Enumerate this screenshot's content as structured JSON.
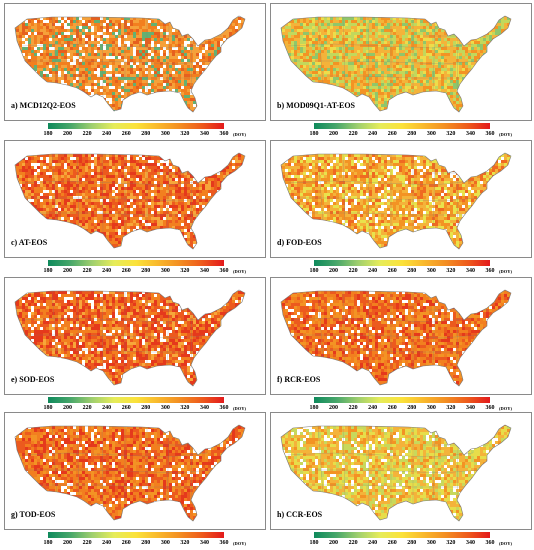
{
  "panels": [
    {
      "label": "a) MCD12Q2-EOS",
      "palette": [
        "#f5a13a",
        "#f27f1f",
        "#e6601e",
        "#64b072",
        "#ffffff"
      ],
      "weights": [
        0.3,
        0.28,
        0.16,
        0.12,
        0.14
      ]
    },
    {
      "label": "b) MOD09Q1-AT-EOS",
      "palette": [
        "#f4b33a",
        "#f39324",
        "#c2d85c",
        "#8fc66b",
        "#eedc4a"
      ],
      "weights": [
        0.33,
        0.22,
        0.2,
        0.12,
        0.13
      ]
    },
    {
      "label": "c) AT-EOS",
      "palette": [
        "#f27f1f",
        "#ec5a1e",
        "#e5391c",
        "#f7a63a",
        "#ffffff"
      ],
      "weights": [
        0.3,
        0.25,
        0.2,
        0.15,
        0.1
      ]
    },
    {
      "label": "d) FOD-EOS",
      "palette": [
        "#f4b33a",
        "#f39324",
        "#e9e24c",
        "#ef6a21",
        "#ffffff"
      ],
      "weights": [
        0.3,
        0.27,
        0.18,
        0.15,
        0.1
      ]
    },
    {
      "label": "e) SOD-EOS",
      "palette": [
        "#f27f1f",
        "#ec5a1e",
        "#e5391c",
        "#f7a63a",
        "#ffffff"
      ],
      "weights": [
        0.26,
        0.26,
        0.26,
        0.12,
        0.1
      ]
    },
    {
      "label": "f) RCR-EOS",
      "palette": [
        "#f27f1f",
        "#ec5a1e",
        "#f39324",
        "#e5391c",
        "#ffffff"
      ],
      "weights": [
        0.3,
        0.25,
        0.22,
        0.13,
        0.1
      ]
    },
    {
      "label": "g) TOD-EOS",
      "palette": [
        "#f27f1f",
        "#ec5a1e",
        "#f39324",
        "#e5391c",
        "#ffffff"
      ],
      "weights": [
        0.3,
        0.24,
        0.2,
        0.16,
        0.1
      ]
    },
    {
      "label": "h) CCR-EOS",
      "palette": [
        "#f4b33a",
        "#e7dd4a",
        "#c8d85c",
        "#f39324",
        "#ffffff"
      ],
      "weights": [
        0.3,
        0.25,
        0.2,
        0.15,
        0.1
      ]
    }
  ],
  "colorbar": {
    "ticks": [
      "180",
      "200",
      "220",
      "240",
      "260",
      "280",
      "300",
      "320",
      "340",
      "360"
    ],
    "unit": "(DOY)",
    "range": [
      180,
      360
    ],
    "colors": [
      "#0f8a5c",
      "#46a66a",
      "#9fcf6e",
      "#e6ec5a",
      "#fbe23a",
      "#f9b82c",
      "#f38d22",
      "#ee5a1c",
      "#e31a1c"
    ]
  },
  "outline_color": "#7a7a7a"
}
